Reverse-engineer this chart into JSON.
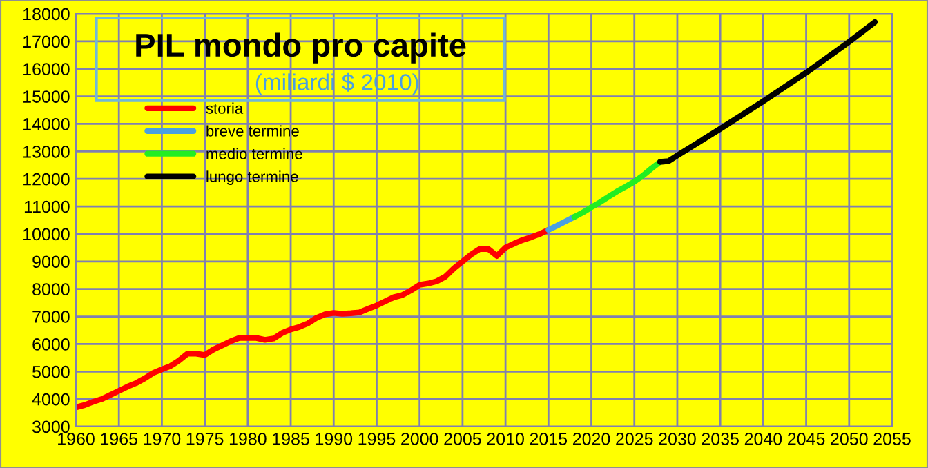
{
  "chart_data": {
    "type": "line",
    "title": "PIL mondo pro capite",
    "subtitle": "(miliardi $ 2010)",
    "xlim": [
      1960,
      2055
    ],
    "xticks": [
      1960,
      1965,
      1970,
      1975,
      1980,
      1985,
      1990,
      1995,
      2000,
      2005,
      2010,
      2015,
      2020,
      2025,
      2030,
      2035,
      2040,
      2045,
      2050,
      2055
    ],
    "ylim": [
      3000,
      18000
    ],
    "yticks": [
      3000,
      4000,
      5000,
      6000,
      7000,
      8000,
      9000,
      10000,
      11000,
      12000,
      13000,
      14000,
      15000,
      16000,
      17000,
      18000
    ],
    "grid": true,
    "legend": "top left",
    "series": [
      {
        "name": "storia",
        "color": "#ff0000",
        "x": [
          1960,
          1961,
          1962,
          1963,
          1964,
          1965,
          1966,
          1967,
          1968,
          1969,
          1970,
          1971,
          1972,
          1973,
          1974,
          1975,
          1976,
          1977,
          1978,
          1979,
          1980,
          1981,
          1982,
          1983,
          1984,
          1985,
          1986,
          1987,
          1988,
          1989,
          1990,
          1991,
          1992,
          1993,
          1994,
          1995,
          1996,
          1997,
          1998,
          1999,
          2000,
          2001,
          2002,
          2003,
          2004,
          2005,
          2006,
          2007,
          2008,
          2009,
          2010,
          2011,
          2012,
          2013,
          2014,
          2015
        ],
        "values": [
          3700,
          3780,
          3900,
          4000,
          4150,
          4300,
          4450,
          4580,
          4750,
          4950,
          5080,
          5200,
          5400,
          5650,
          5650,
          5600,
          5800,
          5950,
          6100,
          6220,
          6230,
          6220,
          6150,
          6200,
          6400,
          6530,
          6620,
          6750,
          6950,
          7080,
          7130,
          7100,
          7120,
          7150,
          7280,
          7400,
          7550,
          7700,
          7780,
          7950,
          8150,
          8200,
          8280,
          8450,
          8750,
          9000,
          9250,
          9450,
          9450,
          9200,
          9500,
          9650,
          9780,
          9880,
          10000,
          10150
        ]
      },
      {
        "name": "breve termine",
        "color": "#4aa0e0",
        "x": [
          2015,
          2016,
          2017,
          2018
        ],
        "values": [
          10150,
          10300,
          10460,
          10620
        ]
      },
      {
        "name": "medio termine",
        "color": "#22ee22",
        "x": [
          2018,
          2019,
          2020,
          2021,
          2022,
          2023,
          2024,
          2025,
          2026,
          2027,
          2028
        ],
        "values": [
          10620,
          10780,
          10970,
          11150,
          11350,
          11550,
          11720,
          11900,
          12120,
          12380,
          12620
        ]
      },
      {
        "name": "lungo termine",
        "color": "#000000",
        "x": [
          2028,
          2029,
          2030,
          2035,
          2040,
          2045,
          2050,
          2053
        ],
        "values": [
          12620,
          12650,
          12850,
          13820,
          14820,
          15860,
          16980,
          17700
        ]
      }
    ]
  }
}
